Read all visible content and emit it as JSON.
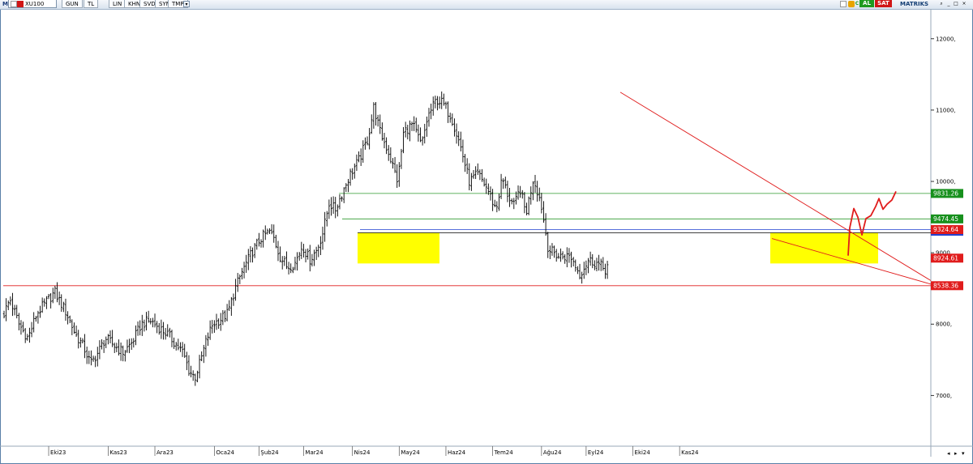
{
  "toolbar": {
    "logo": "M",
    "symbol": "XU100",
    "buttons": [
      "GUN",
      "TL",
      "LIN",
      "KHN",
      "SVD",
      "SYM",
      "TMP"
    ],
    "al_label": "AL",
    "sat_label": "SAT",
    "brand": "MATRIKS"
  },
  "chart_data": {
    "type": "ohlc",
    "x_months": [
      "Eki23",
      "Kas23",
      "Ara23",
      "Oca24",
      "Şub24",
      "Mar24",
      "Nis24",
      "May24",
      "Haz24",
      "Tem24",
      "Ağu24",
      "Eyl24",
      "Eki24",
      "Kas24"
    ],
    "y_ticks": [
      12000,
      11000,
      10000,
      9000,
      8000,
      7000
    ],
    "y_tick_labels": [
      "12000,",
      "11000,",
      "10000,",
      "9000,",
      "8000,",
      "7000,"
    ],
    "ylim": [
      6300,
      12350
    ],
    "n_bars": 285,
    "anchors": [
      [
        0,
        8150
      ],
      [
        4,
        8350
      ],
      [
        10,
        8000
      ],
      [
        16,
        7800
      ],
      [
        22,
        8150
      ],
      [
        28,
        8300
      ],
      [
        34,
        8450
      ],
      [
        38,
        8300
      ],
      [
        42,
        8150
      ],
      [
        48,
        7850
      ],
      [
        53,
        7700
      ],
      [
        58,
        7450
      ],
      [
        63,
        7600
      ],
      [
        68,
        7800
      ],
      [
        74,
        7700
      ],
      [
        80,
        7600
      ],
      [
        86,
        7750
      ],
      [
        92,
        8000
      ],
      [
        98,
        8050
      ],
      [
        104,
        7950
      ],
      [
        110,
        7850
      ],
      [
        116,
        7700
      ],
      [
        120,
        7600
      ],
      [
        124,
        7350
      ],
      [
        128,
        7250
      ],
      [
        132,
        7500
      ],
      [
        136,
        7800
      ],
      [
        140,
        8000
      ],
      [
        144,
        8050
      ],
      [
        150,
        8150
      ],
      [
        155,
        8500
      ],
      [
        160,
        8750
      ],
      [
        166,
        9000
      ],
      [
        172,
        9200
      ],
      [
        178,
        9300
      ],
      [
        181,
        9200
      ],
      [
        185,
        8950
      ],
      [
        190,
        8800
      ],
      [
        195,
        8850
      ],
      [
        200,
        9100
      ],
      [
        205,
        8900
      ],
      [
        210,
        9050
      ],
      [
        214,
        9300
      ],
      [
        218,
        9700
      ],
      [
        222,
        9600
      ],
      [
        226,
        9800
      ],
      [
        232,
        10100
      ],
      [
        238,
        10300
      ],
      [
        244,
        10600
      ],
      [
        248,
        11050
      ],
      [
        252,
        10700
      ],
      [
        258,
        10400
      ],
      [
        264,
        10000
      ],
      [
        268,
        10700
      ],
      [
        274,
        10800
      ],
      [
        280,
        10500
      ],
      [
        284,
        10900
      ],
      [
        290,
        11150
      ],
      [
        294,
        11100
      ],
      [
        300,
        10900
      ],
      [
        306,
        10500
      ],
      [
        312,
        10000
      ],
      [
        318,
        10100
      ],
      [
        324,
        9900
      ],
      [
        330,
        9600
      ],
      [
        334,
        10050
      ],
      [
        338,
        9800
      ],
      [
        342,
        9650
      ],
      [
        346,
        9900
      ],
      [
        350,
        9550
      ],
      [
        355,
        10050
      ],
      [
        360,
        9700
      ],
      [
        365,
        9050
      ],
      [
        372,
        8950
      ],
      [
        380,
        8950
      ],
      [
        386,
        8700
      ],
      [
        392,
        8900
      ],
      [
        398,
        8850
      ],
      [
        404,
        8750
      ],
      [
        406,
        9000
      ]
    ],
    "horizontal_levels": [
      {
        "value": 9831.26,
        "label": "9831.26",
        "line_color": "#2e9a2e",
        "tag_color": "#17901d"
      },
      {
        "value": 9474.45,
        "label": "9474.45",
        "line_color": "#2e9a2e",
        "tag_color": "#17901d"
      },
      {
        "value": 9324.64,
        "label": "9324.64",
        "line_color": "#1f3fd0",
        "tag_color": "#e01c1c"
      },
      {
        "value": 8924.61,
        "label": "8924.61",
        "line_color": "#e01c1c",
        "tag_color": "#e01c1c"
      },
      {
        "value": 8538.36,
        "label": "8538.36",
        "line_color": "#e01c1c",
        "tag_color": "#e01c1c"
      }
    ],
    "support_zones": [
      {
        "from": "Mar24",
        "to": "Nis24",
        "low": 8850,
        "high": 9280,
        "color": "#ffff00"
      },
      {
        "from": "Eki24",
        "to": "Kas24",
        "low": 8850,
        "high": 9280,
        "color": "#ffff00"
      }
    ],
    "trendlines_color": "#e01c1c",
    "projection_color": "#e01c1c"
  }
}
